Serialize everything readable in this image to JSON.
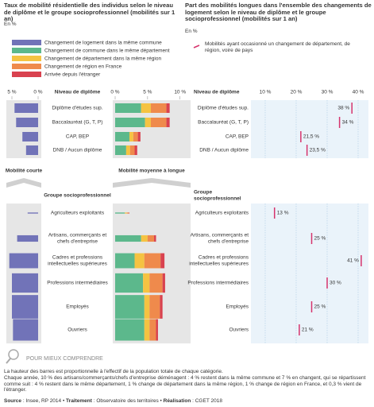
{
  "chart_data": {
    "type": "bar",
    "title_left": "Taux de mobilité résidentielle des individus selon le niveau de diplôme et le groupe socioprofessionnel (mobilités sur 1 an)",
    "unit_left": "En %",
    "title_right": "Part des mobilités longues dans l'ensemble des changements de logement selon le niveau de diplôme et le groupe socioprofessionnel (mobilités sur 1 an)",
    "unit_right": "En %",
    "legend": [
      {
        "name": "Changement de logement dans la même commune",
        "color": "#7173b8"
      },
      {
        "name": "Changement de commune dans le même département",
        "color": "#5cb88c"
      },
      {
        "name": "Changement de département dans la même région",
        "color": "#f5c342"
      },
      {
        "name": "Changement de région en France",
        "color": "#ef8a4c"
      },
      {
        "name": "Arrivée depuis l'étranger",
        "color": "#d9424f"
      }
    ],
    "share_legend": {
      "name": "Mobilités ayant occasionné un changement de département, de région, voire de pays",
      "color": "#d6336c"
    },
    "short_label": "Mobilité courte",
    "long_label": "Mobilité moyenne à longue",
    "short_xlim": [
      0,
      6
    ],
    "short_xticks": [
      {
        "value": 5,
        "label": "5 %"
      },
      {
        "value": 0,
        "label": "0 %"
      }
    ],
    "long_xlim": [
      0,
      11.5
    ],
    "long_xticks": [
      {
        "value": 0,
        "label": "0 %"
      },
      {
        "value": 5,
        "label": "5 %"
      },
      {
        "value": 10,
        "label": "10 %"
      }
    ],
    "share_xlim": [
      5,
      43
    ],
    "share_xticks": [
      {
        "value": 10,
        "label": "10 %"
      },
      {
        "value": 20,
        "label": "20 %"
      },
      {
        "value": 30,
        "label": "30 %"
      },
      {
        "value": 40,
        "label": "40 %"
      }
    ],
    "groups": [
      {
        "label": "Niveau de diplôme",
        "categories": [
          "Diplôme d'études sup.",
          "Baccalauréat (G, T, P)",
          "CAP, BEP",
          "DNB / Aucun diplôme"
        ],
        "series": [
          {
            "values": [
              4.5,
              4.2,
              3,
              2.3
            ]
          },
          {
            "values": [
              4,
              4.6,
              2.2,
              1.7
            ]
          },
          {
            "values": [
              1.5,
              0.9,
              0.6,
              0.6
            ]
          },
          {
            "values": [
              2.4,
              2.4,
              0.7,
              0.7
            ]
          },
          {
            "values": [
              0.5,
              0.5,
              0.4,
              0.4
            ]
          }
        ],
        "share": {
          "values": [
            38,
            34,
            21.5,
            23.5
          ],
          "value_labels": [
            "38 %",
            "34 %",
            "21,5 %",
            "23,5 %"
          ]
        }
      },
      {
        "label": "Groupe socioprofessionnel",
        "categories": [
          "Agriculteurs exploitants",
          "Artisans, commerçants et\nchefs d'entreprise",
          "Cadres et professions\nintellectuelles supérieures",
          "Professions intermédiaires",
          "Employés",
          "Ouvriers"
        ],
        "population": [
          0.5,
          3,
          7,
          9,
          11,
          10
        ],
        "series": [
          {
            "values": [
              2,
              4,
              5.5,
              5,
              5,
              4.8
            ]
          },
          {
            "values": [
              1.5,
              4,
              3,
              4.3,
              4.5,
              4.5
            ]
          },
          {
            "values": [
              0.3,
              1,
              1.5,
              1,
              0.8,
              0.8
            ]
          },
          {
            "values": [
              0.3,
              1,
              2.5,
              2,
              1.6,
              1
            ]
          },
          {
            "values": [
              0.1,
              0.3,
              0.6,
              0.4,
              0.4,
              0.3
            ]
          }
        ],
        "share": {
          "values": [
            13,
            25,
            41,
            30,
            25,
            21
          ],
          "value_labels": [
            "13 %",
            "25 %",
            "41 %",
            "30 %",
            "25 %",
            "21 %"
          ]
        }
      }
    ],
    "footer": {
      "heading": "POUR MIEUX COMPRENDRE",
      "notes": [
        "La hauteur des barres est proportionnelle à l'effectif de la population totale de chaque catégorie.",
        "Chaque année, 10 % des artisans/commerçants/chefs d'entreprise déménagent : 4 % restent dans la même commune et 7 % en changent, qui se répartissent comme suit : 4 % restent dans le même département, 1 % change de département dans la même région, 1 % change de région en France, et 0,3 % vient de l'étranger."
      ],
      "source": [
        {
          "label": "Source",
          "text": " : Insee, RP 2014 • "
        },
        {
          "label": "Traitement",
          "text": " : Observatoire des territoires • "
        },
        {
          "label": "Réalisation",
          "text": " : CGET 2018"
        }
      ]
    }
  }
}
